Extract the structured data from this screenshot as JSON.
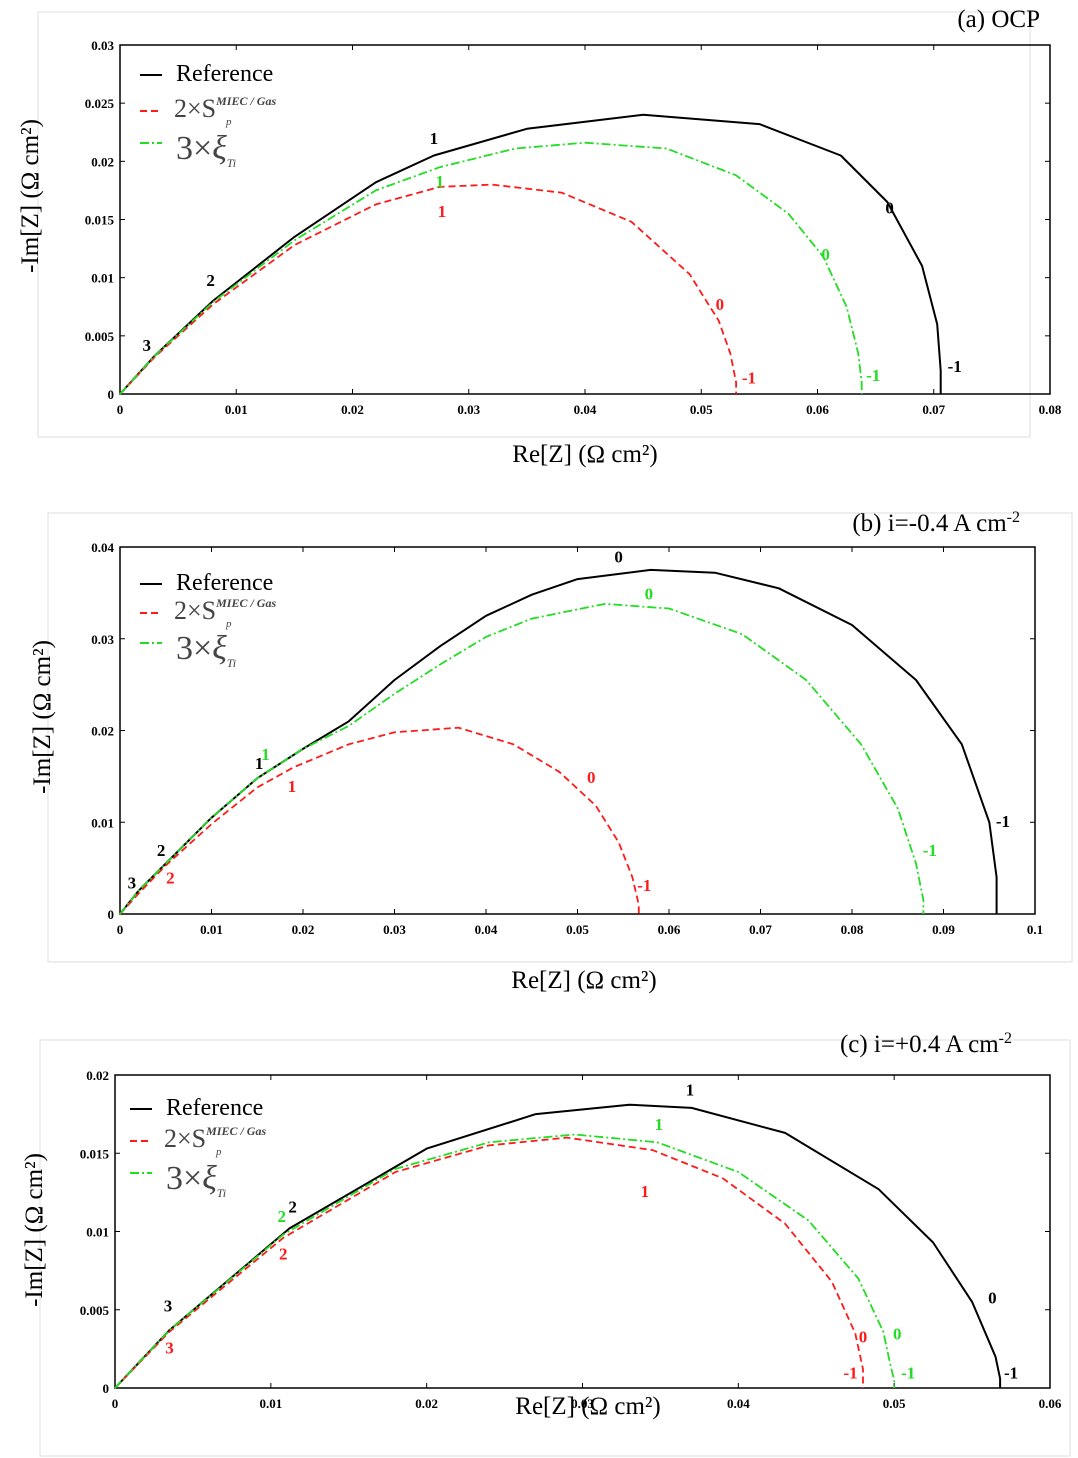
{
  "figure": {
    "x_axis_title": "Re[Z] (Ω cm²)",
    "y_axis_title": "-Im[Z] (Ω cm²)"
  },
  "colors": {
    "Reference": "#000000",
    "2xSp": "#ff1a1a",
    "3xXi": "#22dd22"
  },
  "legend": {
    "reference": "Reference",
    "surface_area": {
      "prefix": "2×",
      "symbol": "S",
      "superscript": "MIEC / Gas",
      "subscript": "p"
    },
    "tortuosity": {
      "prefix": "3×",
      "symbol": "ξ",
      "subscript": "Ti"
    }
  },
  "chart_data": [
    {
      "type": "line",
      "title": "(a) OCP",
      "xlabel": "Re[Z] (Ω cm²)",
      "ylabel": "-Im[Z] (Ω cm²)",
      "xlim": [
        0,
        0.08
      ],
      "ylim": [
        0,
        0.03
      ],
      "xticks": [
        "0",
        "0.01",
        "0.02",
        "0.03",
        "0.04",
        "0.05",
        "0.06",
        "0.07",
        "0.08"
      ],
      "yticks": [
        "0",
        "0.005",
        "0.01",
        "0.015",
        "0.02",
        "0.025",
        "0.03"
      ],
      "series": [
        {
          "name": "Reference",
          "style": "solid",
          "x": [
            0,
            0.003,
            0.008,
            0.015,
            0.022,
            0.027,
            0.035,
            0.045,
            0.055,
            0.062,
            0.066,
            0.069,
            0.0703,
            0.0706,
            0.0706
          ],
          "y": [
            0,
            0.0033,
            0.008,
            0.0135,
            0.0182,
            0.0205,
            0.0228,
            0.024,
            0.0232,
            0.0205,
            0.0165,
            0.011,
            0.006,
            0.002,
            0
          ]
        },
        {
          "name": "2×Sp",
          "style": "dashed",
          "x": [
            0,
            0.003,
            0.008,
            0.015,
            0.022,
            0.0275,
            0.032,
            0.038,
            0.044,
            0.049,
            0.0515,
            0.0525,
            0.053,
            0.053
          ],
          "y": [
            0,
            0.0032,
            0.0077,
            0.0128,
            0.0163,
            0.0178,
            0.018,
            0.0173,
            0.0148,
            0.0103,
            0.0063,
            0.0035,
            0.001,
            0
          ]
        },
        {
          "name": "3×ξTi",
          "style": "dashdot",
          "x": [
            0,
            0.003,
            0.008,
            0.015,
            0.022,
            0.0275,
            0.034,
            0.04,
            0.047,
            0.053,
            0.0575,
            0.0605,
            0.0625,
            0.0635,
            0.0638,
            0.0638
          ],
          "y": [
            0,
            0.0033,
            0.0079,
            0.0132,
            0.0175,
            0.0195,
            0.0211,
            0.0216,
            0.0211,
            0.0188,
            0.0155,
            0.0118,
            0.0075,
            0.0035,
            0.001,
            0
          ]
        }
      ],
      "annotations": [
        {
          "text": "1",
          "x": 0.027,
          "y": 0.0215,
          "color": "#000000"
        },
        {
          "text": "2",
          "x": 0.0078,
          "y": 0.0093,
          "color": "#000000"
        },
        {
          "text": "3",
          "x": 0.0023,
          "y": 0.0037,
          "color": "#000000"
        },
        {
          "text": "0",
          "x": 0.0662,
          "y": 0.0155,
          "color": "#000000"
        },
        {
          "text": "-1",
          "x": 0.0718,
          "y": 0.0019,
          "color": "#000000"
        },
        {
          "text": "1",
          "x": 0.0275,
          "y": 0.0178,
          "color": "#22dd22"
        },
        {
          "text": "0",
          "x": 0.0607,
          "y": 0.0115,
          "color": "#22dd22"
        },
        {
          "text": "-1",
          "x": 0.0648,
          "y": 0.0011,
          "color": "#22dd22"
        },
        {
          "text": "1",
          "x": 0.0277,
          "y": 0.0152,
          "color": "#ff1a1a"
        },
        {
          "text": "0",
          "x": 0.0516,
          "y": 0.0072,
          "color": "#ff1a1a"
        },
        {
          "text": "-1",
          "x": 0.0541,
          "y": 0.0009,
          "color": "#ff1a1a"
        }
      ]
    },
    {
      "type": "line",
      "title": "(b) i=-0.4 A cm",
      "title_sup": "-2",
      "xlabel": "Re[Z] (Ω cm²)",
      "ylabel": "-Im[Z] (Ω cm²)",
      "xlim": [
        0,
        0.1
      ],
      "ylim": [
        0,
        0.04
      ],
      "xticks": [
        "0",
        "0.01",
        "0.02",
        "0.03",
        "0.04",
        "0.05",
        "0.06",
        "0.07",
        "0.08",
        "0.09",
        "0.1"
      ],
      "yticks": [
        "0",
        "0.01",
        "0.02",
        "0.03",
        "0.04"
      ],
      "series": [
        {
          "name": "Reference",
          "style": "solid",
          "x": [
            0,
            0.002,
            0.005,
            0.01,
            0.015,
            0.02,
            0.025,
            0.03,
            0.035,
            0.04,
            0.045,
            0.05,
            0.058,
            0.065,
            0.072,
            0.08,
            0.087,
            0.092,
            0.095,
            0.0958,
            0.0958
          ],
          "y": [
            0,
            0.0025,
            0.0055,
            0.0105,
            0.0148,
            0.018,
            0.021,
            0.0255,
            0.0292,
            0.0325,
            0.0348,
            0.0365,
            0.0375,
            0.0372,
            0.0355,
            0.0315,
            0.0255,
            0.0185,
            0.01,
            0.004,
            0
          ]
        },
        {
          "name": "2×Sp",
          "style": "dashed",
          "x": [
            0,
            0.002,
            0.005,
            0.01,
            0.015,
            0.019,
            0.025,
            0.03,
            0.037,
            0.043,
            0.048,
            0.052,
            0.0545,
            0.056,
            0.0567,
            0.0567
          ],
          "y": [
            0,
            0.0022,
            0.0053,
            0.0098,
            0.0138,
            0.016,
            0.0185,
            0.0198,
            0.0203,
            0.0185,
            0.0155,
            0.0118,
            0.0078,
            0.004,
            0.001,
            0
          ]
        },
        {
          "name": "3×ξTi",
          "style": "dashdot",
          "x": [
            0,
            0.002,
            0.005,
            0.01,
            0.015,
            0.02,
            0.025,
            0.03,
            0.035,
            0.04,
            0.045,
            0.053,
            0.06,
            0.068,
            0.075,
            0.081,
            0.085,
            0.087,
            0.0878,
            0.0878
          ],
          "y": [
            0,
            0.0025,
            0.0055,
            0.0105,
            0.0148,
            0.018,
            0.0205,
            0.024,
            0.0272,
            0.0302,
            0.0322,
            0.0338,
            0.0333,
            0.0305,
            0.0255,
            0.0185,
            0.0115,
            0.0055,
            0.0015,
            0
          ]
        }
      ],
      "annotations": [
        {
          "text": "0",
          "x": 0.0545,
          "y": 0.0383,
          "color": "#000000"
        },
        {
          "text": "1",
          "x": 0.0152,
          "y": 0.0158,
          "color": "#000000"
        },
        {
          "text": "2",
          "x": 0.0045,
          "y": 0.0063,
          "color": "#000000"
        },
        {
          "text": "3",
          "x": 0.0013,
          "y": 0.0028,
          "color": "#000000"
        },
        {
          "text": "-1",
          "x": 0.0965,
          "y": 0.0095,
          "color": "#000000"
        },
        {
          "text": "0",
          "x": 0.0578,
          "y": 0.0343,
          "color": "#22dd22"
        },
        {
          "text": "1",
          "x": 0.0159,
          "y": 0.0168,
          "color": "#22dd22"
        },
        {
          "text": "-1",
          "x": 0.0885,
          "y": 0.0063,
          "color": "#22dd22"
        },
        {
          "text": "0",
          "x": 0.0515,
          "y": 0.0143,
          "color": "#ff1a1a"
        },
        {
          "text": "1",
          "x": 0.0188,
          "y": 0.0133,
          "color": "#ff1a1a"
        },
        {
          "text": "2",
          "x": 0.0055,
          "y": 0.0033,
          "color": "#ff1a1a"
        },
        {
          "text": "-1",
          "x": 0.0573,
          "y": 0.0025,
          "color": "#ff1a1a"
        }
      ]
    },
    {
      "type": "line",
      "title": "(c) i=+0.4 A cm",
      "title_sup": "-2",
      "xlabel": "Re[Z] (Ω cm²)",
      "ylabel": "-Im[Z] (Ω cm²)",
      "xlim": [
        0,
        0.06
      ],
      "ylim": [
        0,
        0.02
      ],
      "xticks": [
        "0",
        "0.01",
        "0.02",
        "0.03",
        "0.04",
        "0.05",
        "0.06"
      ],
      "yticks": [
        "0",
        "0.005",
        "0.01",
        "0.015",
        "0.02"
      ],
      "series": [
        {
          "name": "Reference",
          "style": "solid",
          "x": [
            0,
            0.0035,
            0.0112,
            0.02,
            0.027,
            0.033,
            0.037,
            0.043,
            0.049,
            0.0525,
            0.055,
            0.0565,
            0.0568,
            0.0568
          ],
          "y": [
            0,
            0.0037,
            0.0102,
            0.0153,
            0.0175,
            0.0181,
            0.0179,
            0.0163,
            0.0127,
            0.0093,
            0.0055,
            0.002,
            0.0006,
            0
          ]
        },
        {
          "name": "2×Sp",
          "style": "dashed",
          "x": [
            0,
            0.0035,
            0.0108,
            0.018,
            0.024,
            0.029,
            0.0345,
            0.039,
            0.043,
            0.046,
            0.0475,
            0.048,
            0.048
          ],
          "y": [
            0,
            0.0036,
            0.0096,
            0.0138,
            0.0155,
            0.016,
            0.0152,
            0.0134,
            0.0105,
            0.0068,
            0.0035,
            0.0012,
            0
          ]
        },
        {
          "name": "3×ξTi",
          "style": "dashdot",
          "x": [
            0,
            0.0035,
            0.0108,
            0.018,
            0.024,
            0.0295,
            0.0348,
            0.04,
            0.0445,
            0.0477,
            0.0493,
            0.0498,
            0.05,
            0.05
          ],
          "y": [
            0,
            0.0037,
            0.0098,
            0.014,
            0.0157,
            0.0162,
            0.0157,
            0.0138,
            0.0107,
            0.007,
            0.0036,
            0.0013,
            0.0005,
            0
          ]
        }
      ],
      "annotations": [
        {
          "text": "1",
          "x": 0.0369,
          "y": 0.0187,
          "color": "#000000"
        },
        {
          "text": "2",
          "x": 0.0114,
          "y": 0.0112,
          "color": "#000000"
        },
        {
          "text": "3",
          "x": 0.0034,
          "y": 0.0049,
          "color": "#000000"
        },
        {
          "text": "0",
          "x": 0.0563,
          "y": 0.0054,
          "color": "#000000"
        },
        {
          "text": "-1",
          "x": 0.0575,
          "y": 0.0006,
          "color": "#000000"
        },
        {
          "text": "1",
          "x": 0.0349,
          "y": 0.0165,
          "color": "#22dd22"
        },
        {
          "text": "2",
          "x": 0.0107,
          "y": 0.0106,
          "color": "#22dd22"
        },
        {
          "text": "0",
          "x": 0.0502,
          "y": 0.0031,
          "color": "#22dd22"
        },
        {
          "text": "-1",
          "x": 0.0509,
          "y": 0.0006,
          "color": "#22dd22"
        },
        {
          "text": "1",
          "x": 0.034,
          "y": 0.0122,
          "color": "#ff1a1a"
        },
        {
          "text": "2",
          "x": 0.0108,
          "y": 0.0082,
          "color": "#ff1a1a"
        },
        {
          "text": "3",
          "x": 0.0035,
          "y": 0.0022,
          "color": "#ff1a1a"
        },
        {
          "text": "0",
          "x": 0.048,
          "y": 0.0029,
          "color": "#ff1a1a"
        },
        {
          "text": "-1",
          "x": 0.0472,
          "y": 0.0006,
          "color": "#ff1a1a"
        }
      ]
    }
  ]
}
